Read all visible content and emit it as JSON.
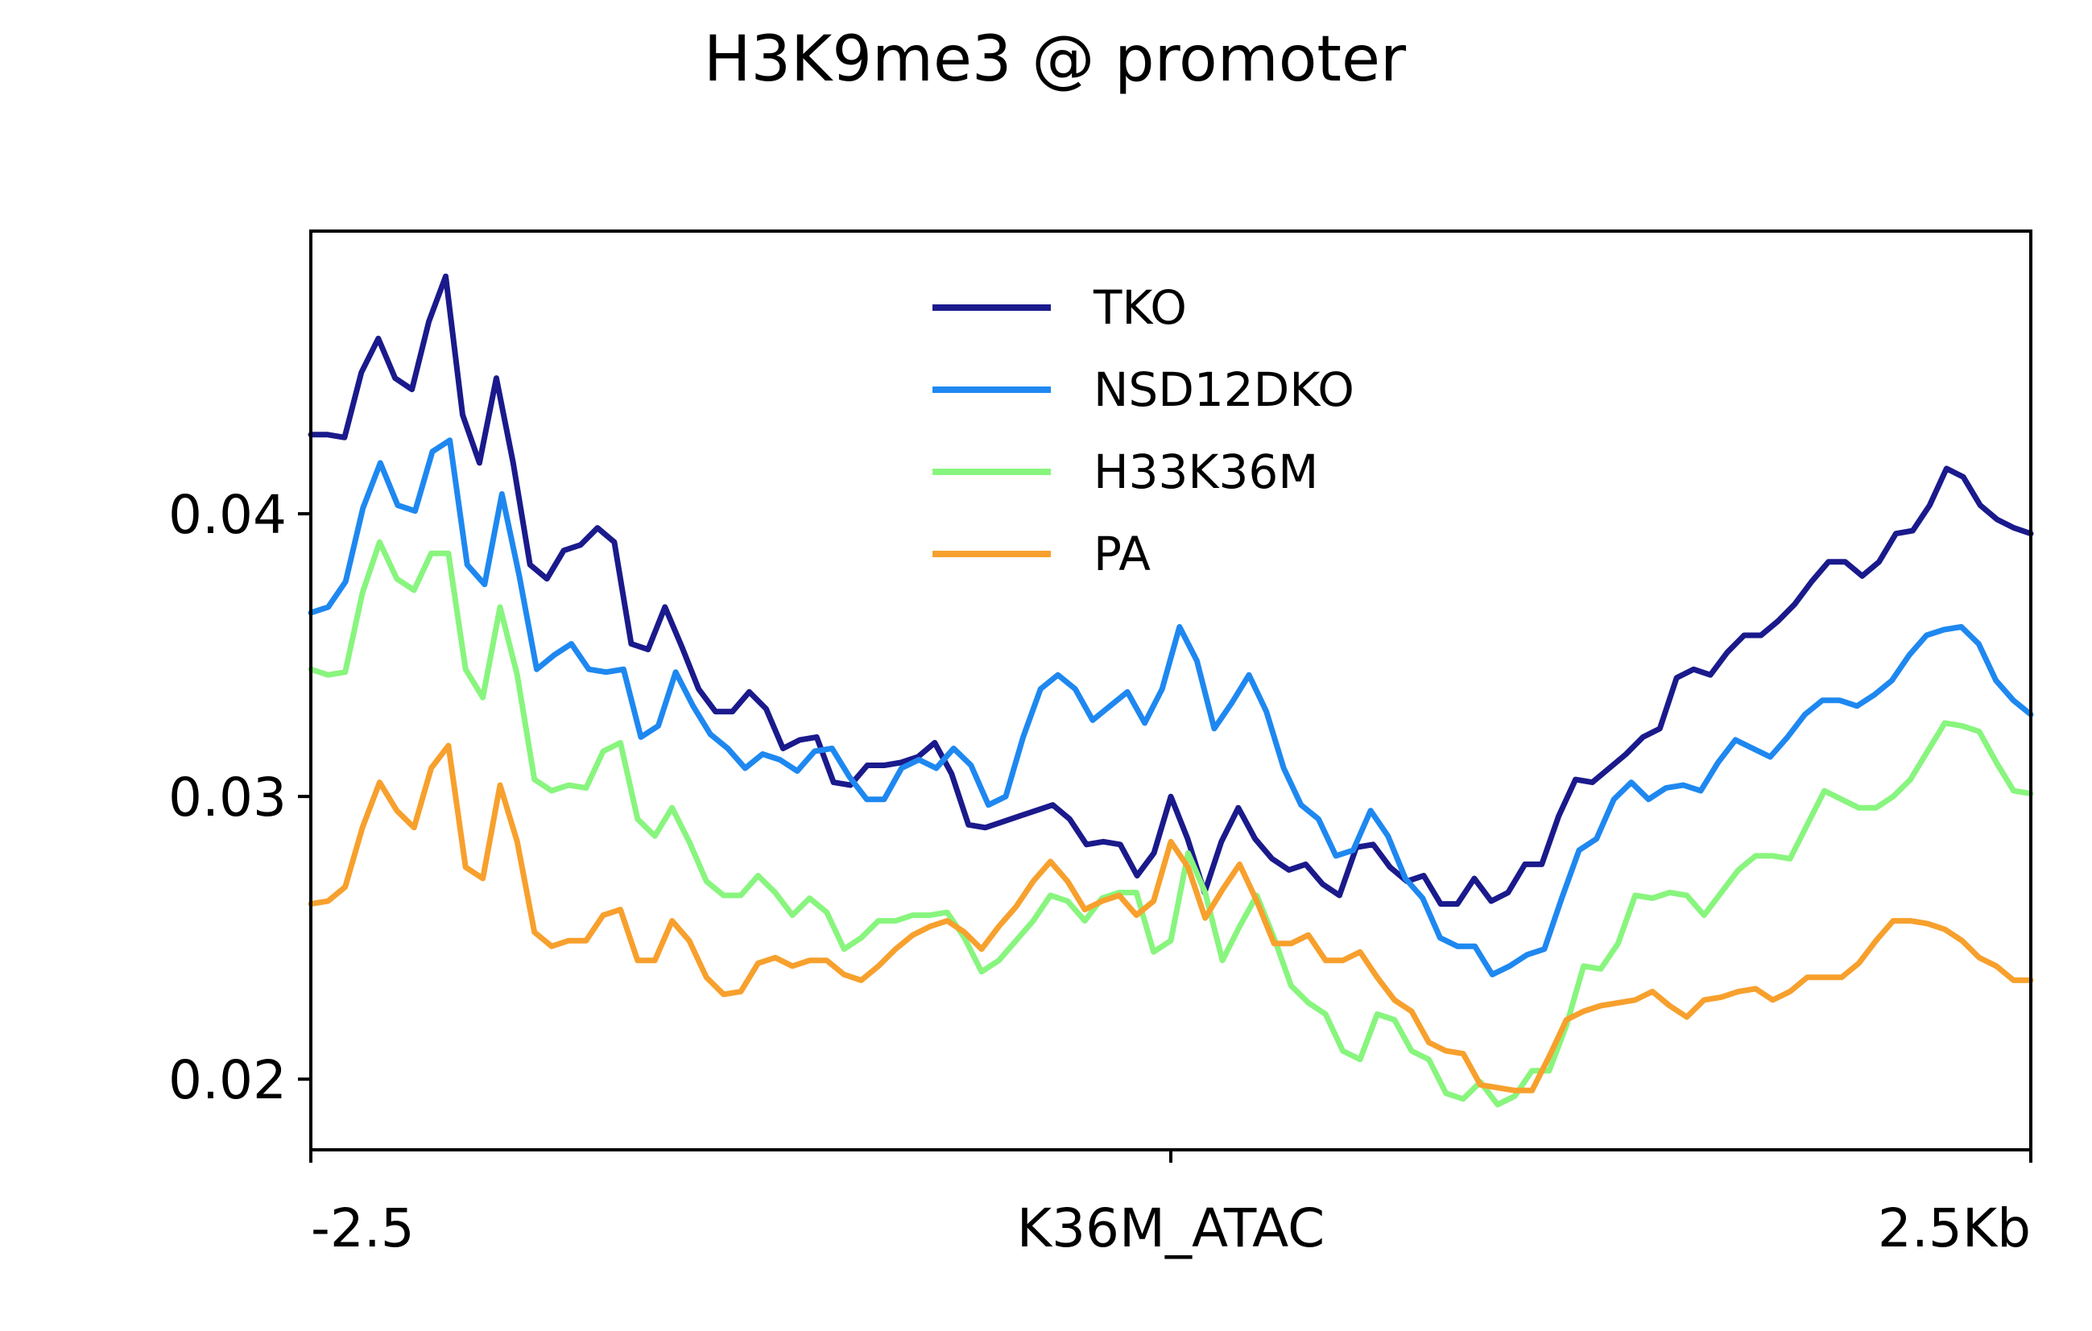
{
  "chart_data": {
    "type": "line",
    "title": "H3K9me3 @ promoter",
    "xlabel": "",
    "ylabel": "",
    "x_tick_labels": [
      "-2.5",
      "K36M_ATAC",
      "2.5Kb"
    ],
    "y_tick_labels": [
      "0.02",
      "0.03",
      "0.04"
    ],
    "y_ticks": [
      0.02,
      0.03,
      0.04
    ],
    "ylim": [
      0.0175,
      0.05
    ],
    "x_range": [
      0,
      100
    ],
    "grid": false,
    "legend_position": "upper-center",
    "series": [
      {
        "name": "TKO",
        "color": "#1a1a8c",
        "values": [
          0.0428,
          0.0428,
          0.0427,
          0.045,
          0.0462,
          0.0448,
          0.0444,
          0.0468,
          0.0484,
          0.0435,
          0.0418,
          0.0448,
          0.0418,
          0.0382,
          0.0377,
          0.0387,
          0.0389,
          0.0395,
          0.039,
          0.0354,
          0.0352,
          0.0367,
          0.0353,
          0.0338,
          0.033,
          0.033,
          0.0337,
          0.0331,
          0.0317,
          0.032,
          0.0321,
          0.0305,
          0.0304,
          0.0311,
          0.0311,
          0.0312,
          0.0314,
          0.0319,
          0.0308,
          0.029,
          0.0289,
          0.0291,
          0.0293,
          0.0295,
          0.0297,
          0.0292,
          0.0283,
          0.0284,
          0.0283,
          0.0272,
          0.028,
          0.03,
          0.0285,
          0.0266,
          0.0284,
          0.0296,
          0.0285,
          0.0278,
          0.0274,
          0.0276,
          0.0269,
          0.0265,
          0.0282,
          0.0283,
          0.0275,
          0.027,
          0.0272,
          0.0262,
          0.0262,
          0.0271,
          0.0263,
          0.0266,
          0.0276,
          0.0276,
          0.0293,
          0.0306,
          0.0305,
          0.031,
          0.0315,
          0.0321,
          0.0324,
          0.0342,
          0.0345,
          0.0343,
          0.0351,
          0.0357,
          0.0357,
          0.0362,
          0.0368,
          0.0376,
          0.0383,
          0.0383,
          0.0378,
          0.0383,
          0.0393,
          0.0394,
          0.0403,
          0.0416,
          0.0413,
          0.0403,
          0.0398,
          0.0395,
          0.0393
        ]
      },
      {
        "name": "NSD12DKO",
        "color": "#1e88f0",
        "values": [
          0.0365,
          0.0367,
          0.0376,
          0.0402,
          0.0418,
          0.0403,
          0.0401,
          0.0422,
          0.0426,
          0.0382,
          0.0375,
          0.0407,
          0.0378,
          0.0345,
          0.035,
          0.0354,
          0.0345,
          0.0344,
          0.0345,
          0.0321,
          0.0325,
          0.0344,
          0.0332,
          0.0322,
          0.0317,
          0.031,
          0.0315,
          0.0313,
          0.0309,
          0.0316,
          0.0317,
          0.0307,
          0.0299,
          0.0299,
          0.031,
          0.0313,
          0.031,
          0.0317,
          0.0311,
          0.0297,
          0.03,
          0.0321,
          0.0338,
          0.0343,
          0.0338,
          0.0327,
          0.0332,
          0.0337,
          0.0326,
          0.0338,
          0.036,
          0.0348,
          0.0324,
          0.0333,
          0.0343,
          0.033,
          0.031,
          0.0297,
          0.0292,
          0.0279,
          0.0281,
          0.0295,
          0.0286,
          0.0271,
          0.0264,
          0.025,
          0.0247,
          0.0247,
          0.0237,
          0.024,
          0.0244,
          0.0246,
          0.0264,
          0.0281,
          0.0285,
          0.0299,
          0.0305,
          0.0299,
          0.0303,
          0.0304,
          0.0302,
          0.0312,
          0.032,
          0.0317,
          0.0314,
          0.0321,
          0.0329,
          0.0334,
          0.0334,
          0.0332,
          0.0336,
          0.0341,
          0.035,
          0.0357,
          0.0359,
          0.036,
          0.0354,
          0.0341,
          0.0334,
          0.0329
        ]
      },
      {
        "name": "H33K36M",
        "color": "#88f57e",
        "values": [
          0.0345,
          0.0343,
          0.0344,
          0.0372,
          0.039,
          0.0377,
          0.0373,
          0.0386,
          0.0386,
          0.0345,
          0.0335,
          0.0367,
          0.0343,
          0.0306,
          0.0302,
          0.0304,
          0.0303,
          0.0316,
          0.0319,
          0.0292,
          0.0286,
          0.0296,
          0.0284,
          0.027,
          0.0265,
          0.0265,
          0.0272,
          0.0266,
          0.0258,
          0.0264,
          0.0259,
          0.0246,
          0.025,
          0.0256,
          0.0256,
          0.0258,
          0.0258,
          0.0259,
          0.025,
          0.0238,
          0.0242,
          0.0249,
          0.0256,
          0.0265,
          0.0263,
          0.0256,
          0.0264,
          0.0266,
          0.0266,
          0.0245,
          0.0249,
          0.028,
          0.0266,
          0.0242,
          0.0254,
          0.0265,
          0.025,
          0.0233,
          0.0227,
          0.0223,
          0.021,
          0.0207,
          0.0223,
          0.0221,
          0.021,
          0.0207,
          0.0195,
          0.0193,
          0.0199,
          0.0191,
          0.0194,
          0.0203,
          0.0203,
          0.0219,
          0.024,
          0.0239,
          0.0248,
          0.0265,
          0.0264,
          0.0266,
          0.0265,
          0.0258,
          0.0266,
          0.0274,
          0.0279,
          0.0279,
          0.0278,
          0.029,
          0.0302,
          0.0299,
          0.0296,
          0.0296,
          0.03,
          0.0306,
          0.0316,
          0.0326,
          0.0325,
          0.0323,
          0.0312,
          0.0302,
          0.0301
        ]
      },
      {
        "name": "PA",
        "color": "#f7a02d",
        "values": [
          0.0262,
          0.0263,
          0.0268,
          0.0289,
          0.0305,
          0.0295,
          0.0289,
          0.031,
          0.0318,
          0.0275,
          0.0271,
          0.0304,
          0.0284,
          0.0252,
          0.0247,
          0.0249,
          0.0249,
          0.0258,
          0.026,
          0.0242,
          0.0242,
          0.0256,
          0.0249,
          0.0236,
          0.023,
          0.0231,
          0.0241,
          0.0243,
          0.024,
          0.0242,
          0.0242,
          0.0237,
          0.0235,
          0.024,
          0.0246,
          0.0251,
          0.0254,
          0.0256,
          0.0252,
          0.0246,
          0.0254,
          0.0261,
          0.027,
          0.0277,
          0.027,
          0.026,
          0.0263,
          0.0265,
          0.0258,
          0.0263,
          0.0284,
          0.0275,
          0.0257,
          0.0267,
          0.0276,
          0.0263,
          0.0248,
          0.0248,
          0.0251,
          0.0242,
          0.0242,
          0.0245,
          0.0236,
          0.0228,
          0.0224,
          0.0213,
          0.021,
          0.0209,
          0.0198,
          0.0197,
          0.0196,
          0.0196,
          0.0208,
          0.0221,
          0.0224,
          0.0226,
          0.0227,
          0.0228,
          0.0231,
          0.0226,
          0.0222,
          0.0228,
          0.0229,
          0.0231,
          0.0232,
          0.0228,
          0.0231,
          0.0236,
          0.0236,
          0.0236,
          0.0241,
          0.0249,
          0.0256,
          0.0256,
          0.0255,
          0.0253,
          0.0249,
          0.0243,
          0.024,
          0.0235,
          0.0235
        ]
      }
    ]
  }
}
